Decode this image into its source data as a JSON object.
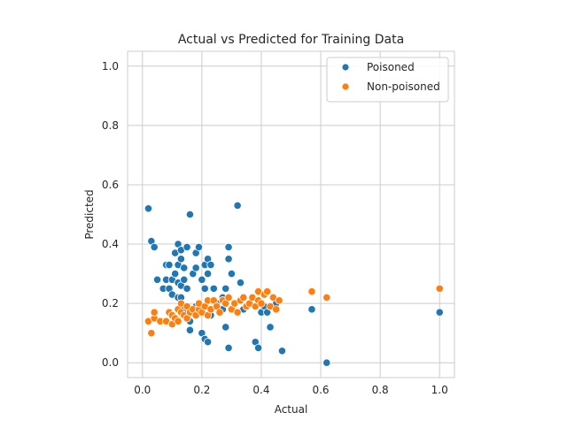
{
  "chart_data": {
    "type": "scatter",
    "title": "Actual vs Predicted for Training Data",
    "xlabel": "Actual",
    "ylabel": "Predicted",
    "xlim": [
      -0.05,
      1.05
    ],
    "ylim": [
      -0.05,
      1.05
    ],
    "xticks": [
      0.0,
      0.2,
      0.4,
      0.6,
      0.8,
      1.0
    ],
    "yticks": [
      0.0,
      0.2,
      0.4,
      0.6,
      0.8,
      1.0
    ],
    "xtick_labels": [
      "0.0",
      "0.2",
      "0.4",
      "0.6",
      "0.8",
      "1.0"
    ],
    "ytick_labels": [
      "0.0",
      "0.2",
      "0.4",
      "0.6",
      "0.8",
      "1.0"
    ],
    "grid": true,
    "legend_position": "top-right",
    "colors": {
      "Poisoned": "#1f77b4",
      "Non-poisoned": "#ff7f0e"
    },
    "series": [
      {
        "name": "Poisoned",
        "points": [
          [
            0.02,
            0.52
          ],
          [
            0.03,
            0.41
          ],
          [
            0.04,
            0.39
          ],
          [
            0.05,
            0.28
          ],
          [
            0.07,
            0.25
          ],
          [
            0.08,
            0.28
          ],
          [
            0.08,
            0.33
          ],
          [
            0.09,
            0.33
          ],
          [
            0.1,
            0.28
          ],
          [
            0.11,
            0.37
          ],
          [
            0.11,
            0.3
          ],
          [
            0.12,
            0.4
          ],
          [
            0.12,
            0.33
          ],
          [
            0.12,
            0.27
          ],
          [
            0.13,
            0.38
          ],
          [
            0.13,
            0.35
          ],
          [
            0.13,
            0.26
          ],
          [
            0.14,
            0.32
          ],
          [
            0.14,
            0.28
          ],
          [
            0.15,
            0.39
          ],
          [
            0.15,
            0.25
          ],
          [
            0.16,
            0.5
          ],
          [
            0.17,
            0.3
          ],
          [
            0.18,
            0.37
          ],
          [
            0.18,
            0.32
          ],
          [
            0.19,
            0.39
          ],
          [
            0.2,
            0.28
          ],
          [
            0.21,
            0.33
          ],
          [
            0.21,
            0.25
          ],
          [
            0.22,
            0.35
          ],
          [
            0.22,
            0.3
          ],
          [
            0.23,
            0.33
          ],
          [
            0.24,
            0.25
          ],
          [
            0.25,
            0.2
          ],
          [
            0.26,
            0.18
          ],
          [
            0.27,
            0.22
          ],
          [
            0.28,
            0.25
          ],
          [
            0.29,
            0.35
          ],
          [
            0.29,
            0.39
          ],
          [
            0.3,
            0.3
          ],
          [
            0.32,
            0.53
          ],
          [
            0.33,
            0.27
          ],
          [
            0.34,
            0.18
          ],
          [
            0.09,
            0.25
          ],
          [
            0.1,
            0.23
          ],
          [
            0.12,
            0.22
          ],
          [
            0.13,
            0.22
          ],
          [
            0.14,
            0.18
          ],
          [
            0.15,
            0.15
          ],
          [
            0.16,
            0.14
          ],
          [
            0.16,
            0.11
          ],
          [
            0.18,
            0.19
          ],
          [
            0.2,
            0.1
          ],
          [
            0.21,
            0.08
          ],
          [
            0.22,
            0.07
          ],
          [
            0.23,
            0.16
          ],
          [
            0.27,
            0.18
          ],
          [
            0.28,
            0.12
          ],
          [
            0.29,
            0.05
          ],
          [
            0.38,
            0.07
          ],
          [
            0.39,
            0.05
          ],
          [
            0.4,
            0.17
          ],
          [
            0.41,
            0.19
          ],
          [
            0.42,
            0.17
          ],
          [
            0.43,
            0.12
          ],
          [
            0.45,
            0.2
          ],
          [
            0.47,
            0.04
          ],
          [
            0.57,
            0.18
          ],
          [
            0.62,
            0.0
          ],
          [
            1.0,
            0.17
          ]
        ]
      },
      {
        "name": "Non-poisoned",
        "points": [
          [
            0.02,
            0.14
          ],
          [
            0.03,
            0.1
          ],
          [
            0.04,
            0.15
          ],
          [
            0.04,
            0.17
          ],
          [
            0.06,
            0.14
          ],
          [
            0.08,
            0.14
          ],
          [
            0.09,
            0.17
          ],
          [
            0.1,
            0.16
          ],
          [
            0.1,
            0.13
          ],
          [
            0.11,
            0.15
          ],
          [
            0.12,
            0.18
          ],
          [
            0.12,
            0.14
          ],
          [
            0.13,
            0.17
          ],
          [
            0.13,
            0.2
          ],
          [
            0.14,
            0.16
          ],
          [
            0.15,
            0.19
          ],
          [
            0.15,
            0.15
          ],
          [
            0.16,
            0.17
          ],
          [
            0.17,
            0.18
          ],
          [
            0.18,
            0.16
          ],
          [
            0.19,
            0.18
          ],
          [
            0.19,
            0.2
          ],
          [
            0.2,
            0.17
          ],
          [
            0.21,
            0.19
          ],
          [
            0.22,
            0.16
          ],
          [
            0.22,
            0.21
          ],
          [
            0.23,
            0.18
          ],
          [
            0.24,
            0.21
          ],
          [
            0.25,
            0.19
          ],
          [
            0.26,
            0.17
          ],
          [
            0.27,
            0.21
          ],
          [
            0.28,
            0.2
          ],
          [
            0.29,
            0.22
          ],
          [
            0.3,
            0.18
          ],
          [
            0.31,
            0.2
          ],
          [
            0.32,
            0.17
          ],
          [
            0.33,
            0.21
          ],
          [
            0.34,
            0.22
          ],
          [
            0.35,
            0.19
          ],
          [
            0.36,
            0.2
          ],
          [
            0.37,
            0.22
          ],
          [
            0.38,
            0.19
          ],
          [
            0.39,
            0.21
          ],
          [
            0.39,
            0.24
          ],
          [
            0.4,
            0.2
          ],
          [
            0.41,
            0.23
          ],
          [
            0.42,
            0.24
          ],
          [
            0.43,
            0.19
          ],
          [
            0.44,
            0.22
          ],
          [
            0.45,
            0.18
          ],
          [
            0.46,
            0.21
          ],
          [
            0.57,
            0.24
          ],
          [
            0.62,
            0.22
          ],
          [
            1.0,
            0.25
          ]
        ]
      }
    ]
  }
}
